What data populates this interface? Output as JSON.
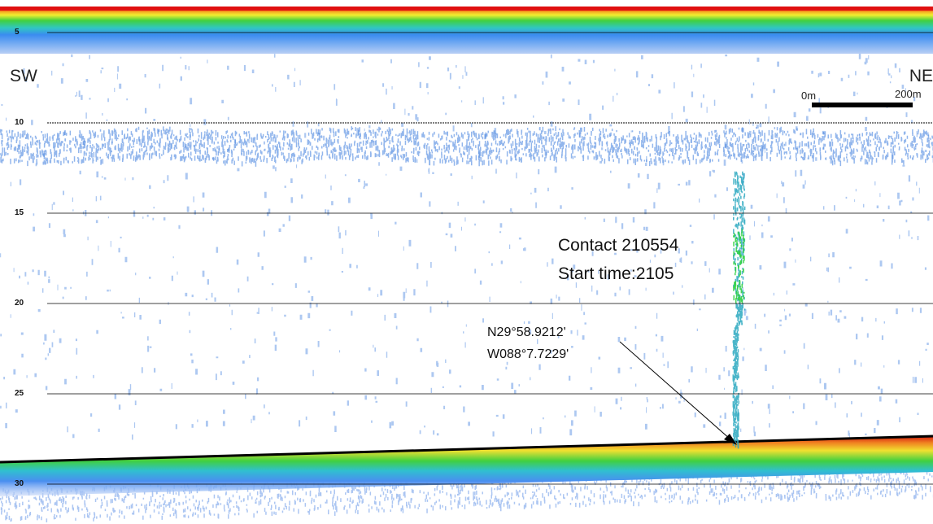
{
  "echogram": {
    "direction_left": "SW",
    "direction_right": "NE",
    "scale_bar": {
      "start": "0m",
      "end": "200m"
    },
    "depth_labels": [
      "5",
      "10",
      "15",
      "20",
      "25",
      "30"
    ],
    "contact": {
      "name": "Contact 210554",
      "start_time": "Start time:2105"
    },
    "position": {
      "latitude": "N29°58.9212'",
      "longitude": "W088°7.7229'"
    }
  }
}
